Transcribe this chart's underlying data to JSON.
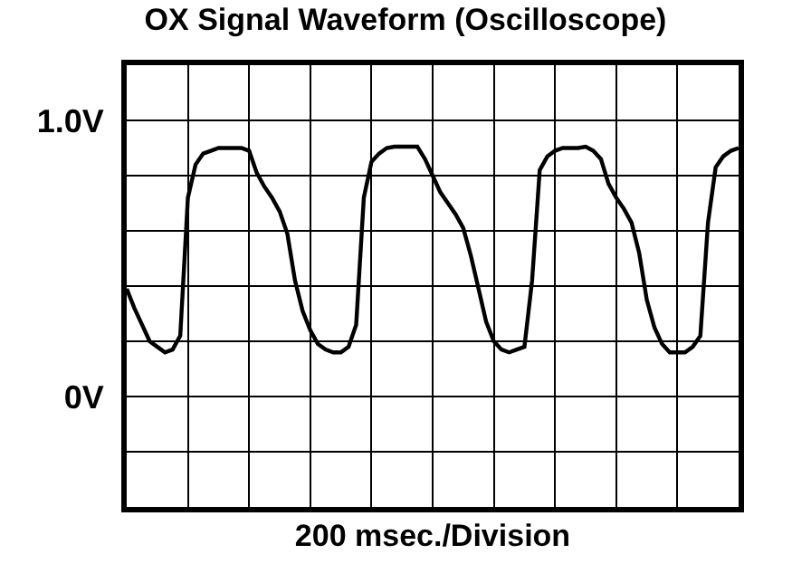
{
  "chart_data": {
    "type": "line",
    "title": "OX Signal Waveform (Oscilloscope)",
    "xlabel": "200 msec./Division",
    "categories": [
      null,
      null,
      null,
      null,
      null,
      null,
      null,
      null,
      null,
      null,
      null,
      null,
      null,
      null,
      null,
      null,
      null,
      null,
      null,
      null,
      null,
      null,
      null,
      null,
      null,
      null,
      null,
      null,
      null,
      null,
      null,
      null,
      null,
      null,
      null,
      null,
      null,
      null,
      null,
      null,
      null,
      null,
      null,
      null,
      null,
      null,
      null,
      null,
      null,
      null,
      null,
      null,
      null,
      null,
      null,
      null,
      null,
      null,
      null,
      null,
      null,
      null,
      null,
      null,
      null,
      null,
      null,
      null,
      null,
      null,
      null,
      null,
      null,
      null,
      null,
      null,
      null,
      null,
      null,
      null,
      null
    ],
    "series": [
      {
        "color": "#000000",
        "values": [
          0.39,
          0.32,
          0.26,
          0.2,
          0.18,
          0.16,
          0.17,
          0.22,
          0.72,
          0.84,
          0.88,
          0.89,
          0.9,
          0.9,
          0.9,
          0.9,
          0.89,
          0.81,
          0.76,
          0.72,
          0.67,
          0.59,
          0.42,
          0.31,
          0.24,
          0.19,
          0.17,
          0.16,
          0.16,
          0.18,
          0.26,
          0.72,
          0.85,
          0.88,
          0.9,
          0.905,
          0.905,
          0.905,
          0.905,
          0.86,
          0.8,
          0.74,
          0.7,
          0.66,
          0.61,
          0.51,
          0.39,
          0.27,
          0.2,
          0.17,
          0.16,
          0.17,
          0.18,
          0.42,
          0.82,
          0.87,
          0.89,
          0.9,
          0.9,
          0.9,
          0.905,
          0.89,
          0.86,
          0.77,
          0.72,
          0.68,
          0.63,
          0.52,
          0.35,
          0.25,
          0.19,
          0.16,
          0.16,
          0.16,
          0.18,
          0.22,
          0.63,
          0.83,
          0.87,
          0.89,
          0.9
        ]
      }
    ],
    "ylim": [
      -0.4,
      1.2
    ],
    "yticks": [
      {
        "value": -0.4,
        "label": null
      },
      {
        "value": -0.2,
        "label": null
      },
      {
        "value": 0,
        "label": "0V"
      },
      {
        "value": 0.2,
        "label": null
      },
      {
        "value": 0.4,
        "label": null
      },
      {
        "value": 0.6,
        "label": null
      },
      {
        "value": 0.8,
        "label": null
      },
      {
        "value": 1.0,
        "label": "1.0V"
      },
      {
        "value": 1.2,
        "label": null
      }
    ],
    "grid": true,
    "legend": false,
    "tick_labels": "y",
    "marker": "none",
    "line_style": "solid"
  }
}
